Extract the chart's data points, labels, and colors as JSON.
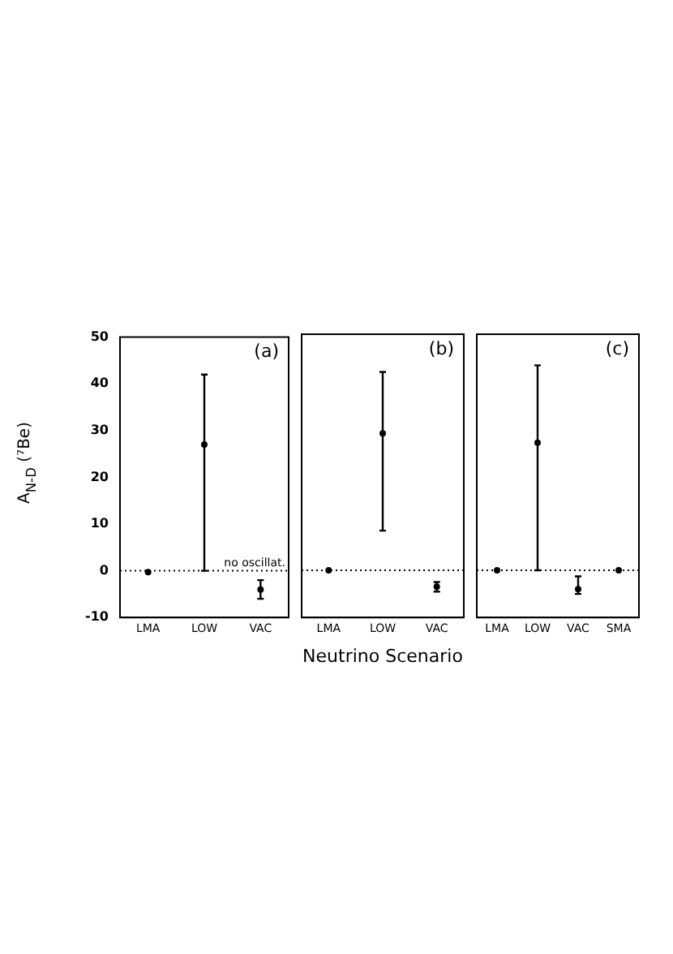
{
  "chart_data": [
    {
      "type": "scatter",
      "ylabel": "A$_{N-D}$ (⁷Be)",
      "categories": [
        "LMA",
        "LOW",
        "VAC"
      ],
      "values": [
        -0.3,
        27,
        -4
      ],
      "errors": [
        null,
        [
          0,
          42
        ],
        [
          -6,
          -2
        ]
      ],
      "color": "#000000",
      "marker": "circle",
      "ylim": [
        -10,
        50
      ],
      "yticks": [
        -10,
        0,
        10,
        20,
        30,
        40,
        50
      ],
      "annotations": [
        "(a)"
      ],
      "ref_lines": [
        {
          "axis": "y",
          "value": 0,
          "label": "no oscillat.",
          "line_style": "dotted"
        }
      ]
    },
    {
      "type": "scatter",
      "xlabel": "Neutrino Scenario",
      "categories": [
        "LMA",
        "LOW",
        "VAC"
      ],
      "values": [
        0,
        29,
        -3.5
      ],
      "errors": [
        null,
        [
          8.4,
          42
        ],
        [
          -4.5,
          -2.5
        ]
      ],
      "color": "#000000",
      "marker": "circle",
      "ylim": [
        -10,
        50
      ],
      "yticks": [
        -10,
        0,
        10,
        20,
        30,
        40,
        50
      ],
      "tick_labels": "x",
      "annotations": [
        "(b)"
      ],
      "ref_lines": [
        {
          "axis": "y",
          "value": 0,
          "line_style": "dotted"
        }
      ]
    },
    {
      "type": "scatter",
      "categories": [
        "LMA",
        "LOW",
        "VAC",
        "SMA"
      ],
      "values": [
        0,
        27,
        -4,
        0
      ],
      "errors": [
        null,
        [
          0,
          43.4
        ],
        [
          -5,
          -1.3
        ],
        null
      ],
      "color": "#000000",
      "marker": "circle",
      "ylim": [
        -10,
        50
      ],
      "yticks": [
        -10,
        0,
        10,
        20,
        30,
        40,
        50
      ],
      "tick_labels": "x",
      "annotations": [
        "(c)"
      ],
      "ref_lines": [
        {
          "axis": "y",
          "value": 0,
          "line_style": "dotted"
        }
      ]
    }
  ]
}
